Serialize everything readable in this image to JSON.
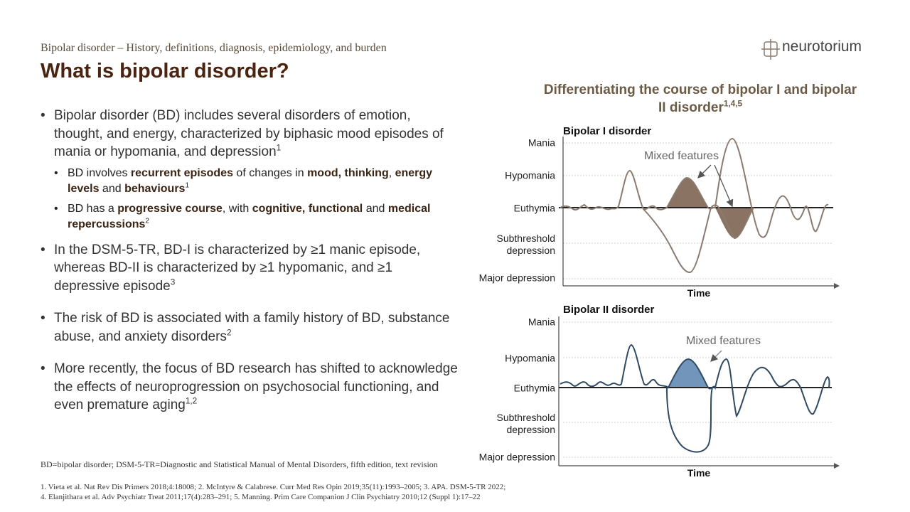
{
  "header": {
    "subtitle": "Bipolar disorder – History, definitions, diagnosis, epidemiology, and burden",
    "title": "What is bipolar disorder?",
    "logo": "neurotorium"
  },
  "bullets": [
    {
      "runs": [
        {
          "text": "Bipolar disorder (BD) includes several disorders of emotion, thought, and energy, characterized by biphasic mood episodes of mania or hypomania, and depression"
        },
        {
          "text": "1",
          "style": "sup"
        }
      ],
      "sub": [
        {
          "runs": [
            {
              "text": "BD involves "
            },
            {
              "text": "recurrent episodes",
              "style": "bold"
            },
            {
              "text": " of changes in "
            },
            {
              "text": "mood, thinking",
              "style": "bold"
            },
            {
              "text": ", "
            },
            {
              "text": "energy levels",
              "style": "bold"
            },
            {
              "text": " and "
            },
            {
              "text": "behaviours",
              "style": "bold"
            },
            {
              "text": "1",
              "style": "sup"
            }
          ]
        },
        {
          "runs": [
            {
              "text": "BD has a "
            },
            {
              "text": "progressive course",
              "style": "bold"
            },
            {
              "text": ", with "
            },
            {
              "text": "cognitive, functional",
              "style": "bold"
            },
            {
              "text": " and "
            },
            {
              "text": "medical repercussions",
              "style": "bold"
            },
            {
              "text": "2",
              "style": "sup"
            }
          ]
        }
      ]
    },
    {
      "runs": [
        {
          "text": "In the DSM-5-TR, BD-I is characterized by ≥1 manic episode, whereas BD-II is characterized by ≥1 hypomanic, and ≥1 depressive episode"
        },
        {
          "text": "3",
          "style": "sup"
        }
      ]
    },
    {
      "runs": [
        {
          "text": "The risk of BD is associated with a family history of BD, substance abuse, and anxiety disorders"
        },
        {
          "text": "2",
          "style": "sup"
        }
      ]
    },
    {
      "runs": [
        {
          "text": "More recently, the focus of BD research has shifted to acknowledge the effects of neuroprogression on psychosocial functioning, and even premature aging"
        },
        {
          "text": "1,2",
          "style": "sup"
        }
      ]
    }
  ],
  "figure": {
    "title": "Differentiating the course of bipolar I and bipolar II disorder",
    "title_sup": "1,4,5",
    "panels": [
      {
        "title": "Bipolar I disorder",
        "levels": [
          "Mania",
          "Hypomania",
          "Euthymia",
          "Subthreshold depression",
          "Major depression"
        ],
        "annotation": "Mixed features",
        "x_label": "Time"
      },
      {
        "title": "Bipolar II disorder",
        "levels": [
          "Mania",
          "Hypomania",
          "Euthymia",
          "Subthreshold depression",
          "Major depression"
        ],
        "annotation": "Mixed features",
        "x_label": "Time"
      }
    ]
  },
  "footer": {
    "abbreviations": "BD=bipolar disorder; DSM-5-TR=Diagnostic and Statistical Manual of Mental Disorders, fifth edition, text revision",
    "references": [
      "1. Vieta et al. Nat Rev Dis Primers 2018;4:18008;  2. McIntyre & Calabrese. Curr Med Res Opin 2019;35(11):1993–2005;  3. APA. DSM-5-TR 2022;",
      "4. Elanjithara et al. Adv Psychiatr Treat 2011;17(4):283–291;  5. Manning. Prim Care Companion J Clin Psychiatry 2010;12 (Suppl 1):17–22"
    ]
  }
}
